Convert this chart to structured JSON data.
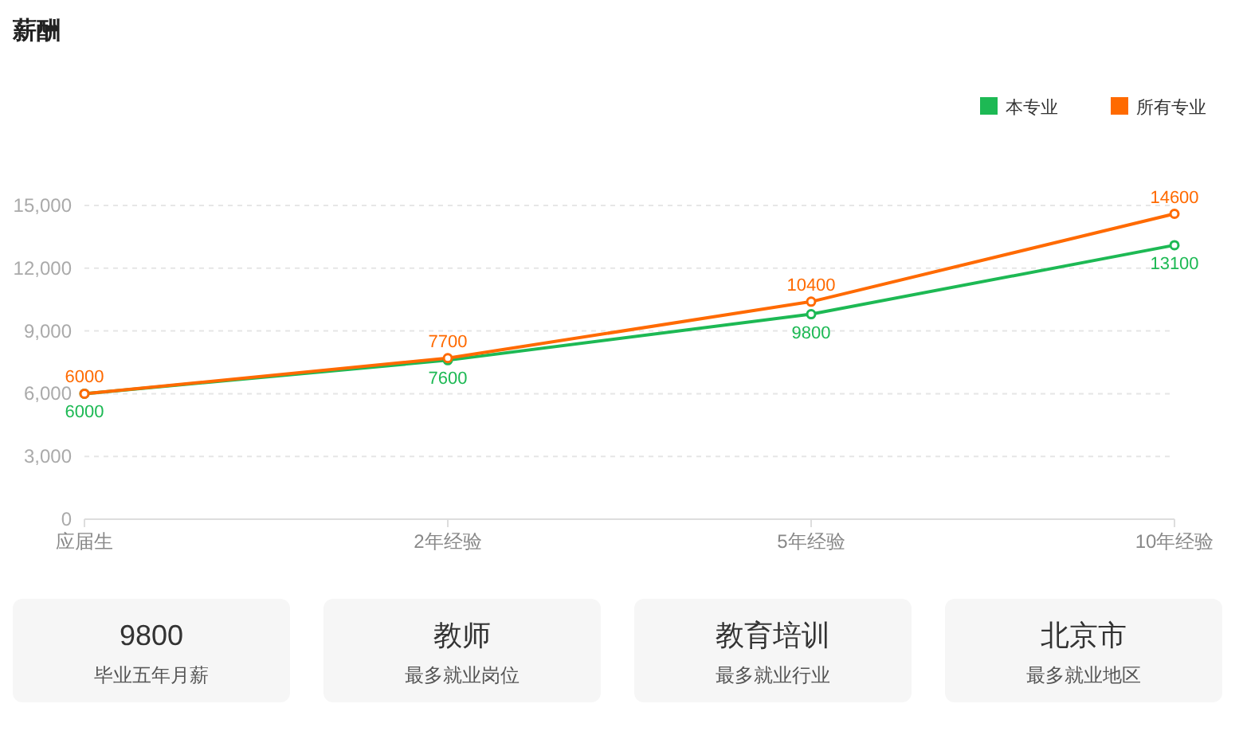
{
  "chart_data": [
    {
      "type": "line",
      "title": "薪酬",
      "categories": [
        "应届生",
        "2年经验",
        "5年经验",
        "10年经验"
      ],
      "series": [
        {
          "name": "本专业",
          "color": "#1db954",
          "values": [
            6000,
            7600,
            9800,
            13100
          ]
        },
        {
          "name": "所有专业",
          "color": "#ff6a00",
          "values": [
            6000,
            7700,
            10400,
            14600
          ]
        }
      ],
      "ylim": [
        0,
        15000
      ],
      "yticks": [
        {
          "value": 0,
          "label": "0"
        },
        {
          "value": 3000,
          "label": "3,000"
        },
        {
          "value": 6000,
          "label": "6,000"
        },
        {
          "value": 9000,
          "label": "9,000"
        },
        {
          "value": 12000,
          "label": "12,000"
        },
        {
          "value": 15000,
          "label": "15,000"
        }
      ],
      "grid": "y",
      "legend": "top right",
      "marker": "circle",
      "line_style": "solid",
      "data_labels": true
    },
    {
      "type": "other",
      "annotations": [
        "9800",
        "毕业五年月薪",
        "教师",
        "最多就业岗位",
        "教育培训",
        "最多就业行业",
        "北京市",
        "最多就业地区"
      ]
    }
  ]
}
